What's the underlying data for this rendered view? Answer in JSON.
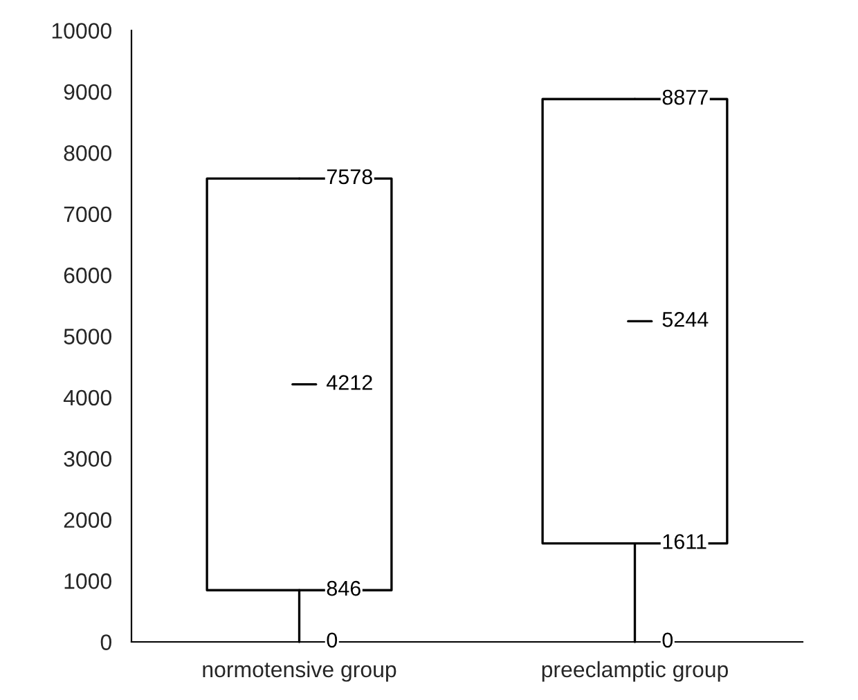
{
  "chart_data": {
    "type": "box",
    "categories": [
      "normotensive group",
      "preeclamptic group"
    ],
    "boxes": [
      {
        "low": 0,
        "q1": 846,
        "median": 4212,
        "q3": 7578,
        "high": 7578
      },
      {
        "low": 0,
        "q1": 1611,
        "median": 5244,
        "q3": 8877,
        "high": 8877
      }
    ],
    "ylim": [
      0,
      10000
    ],
    "yticks": [
      0,
      1000,
      2000,
      3000,
      4000,
      5000,
      6000,
      7000,
      8000,
      9000,
      10000
    ],
    "annotations": [
      {
        "text": "0",
        "x": "normotensive group",
        "y": 0
      },
      {
        "text": "846",
        "x": "normotensive group",
        "y": 846
      },
      {
        "text": "4212",
        "x": "normotensive group",
        "y": 4212
      },
      {
        "text": "7578",
        "x": "normotensive group",
        "y": 7578
      },
      {
        "text": "0",
        "x": "preeclamptic group",
        "y": 0
      },
      {
        "text": "1611",
        "x": "preeclamptic group",
        "y": 1611
      },
      {
        "text": "5244",
        "x": "preeclamptic group",
        "y": 5244
      },
      {
        "text": "8877",
        "x": "preeclamptic group",
        "y": 8877
      }
    ],
    "grid": false
  }
}
